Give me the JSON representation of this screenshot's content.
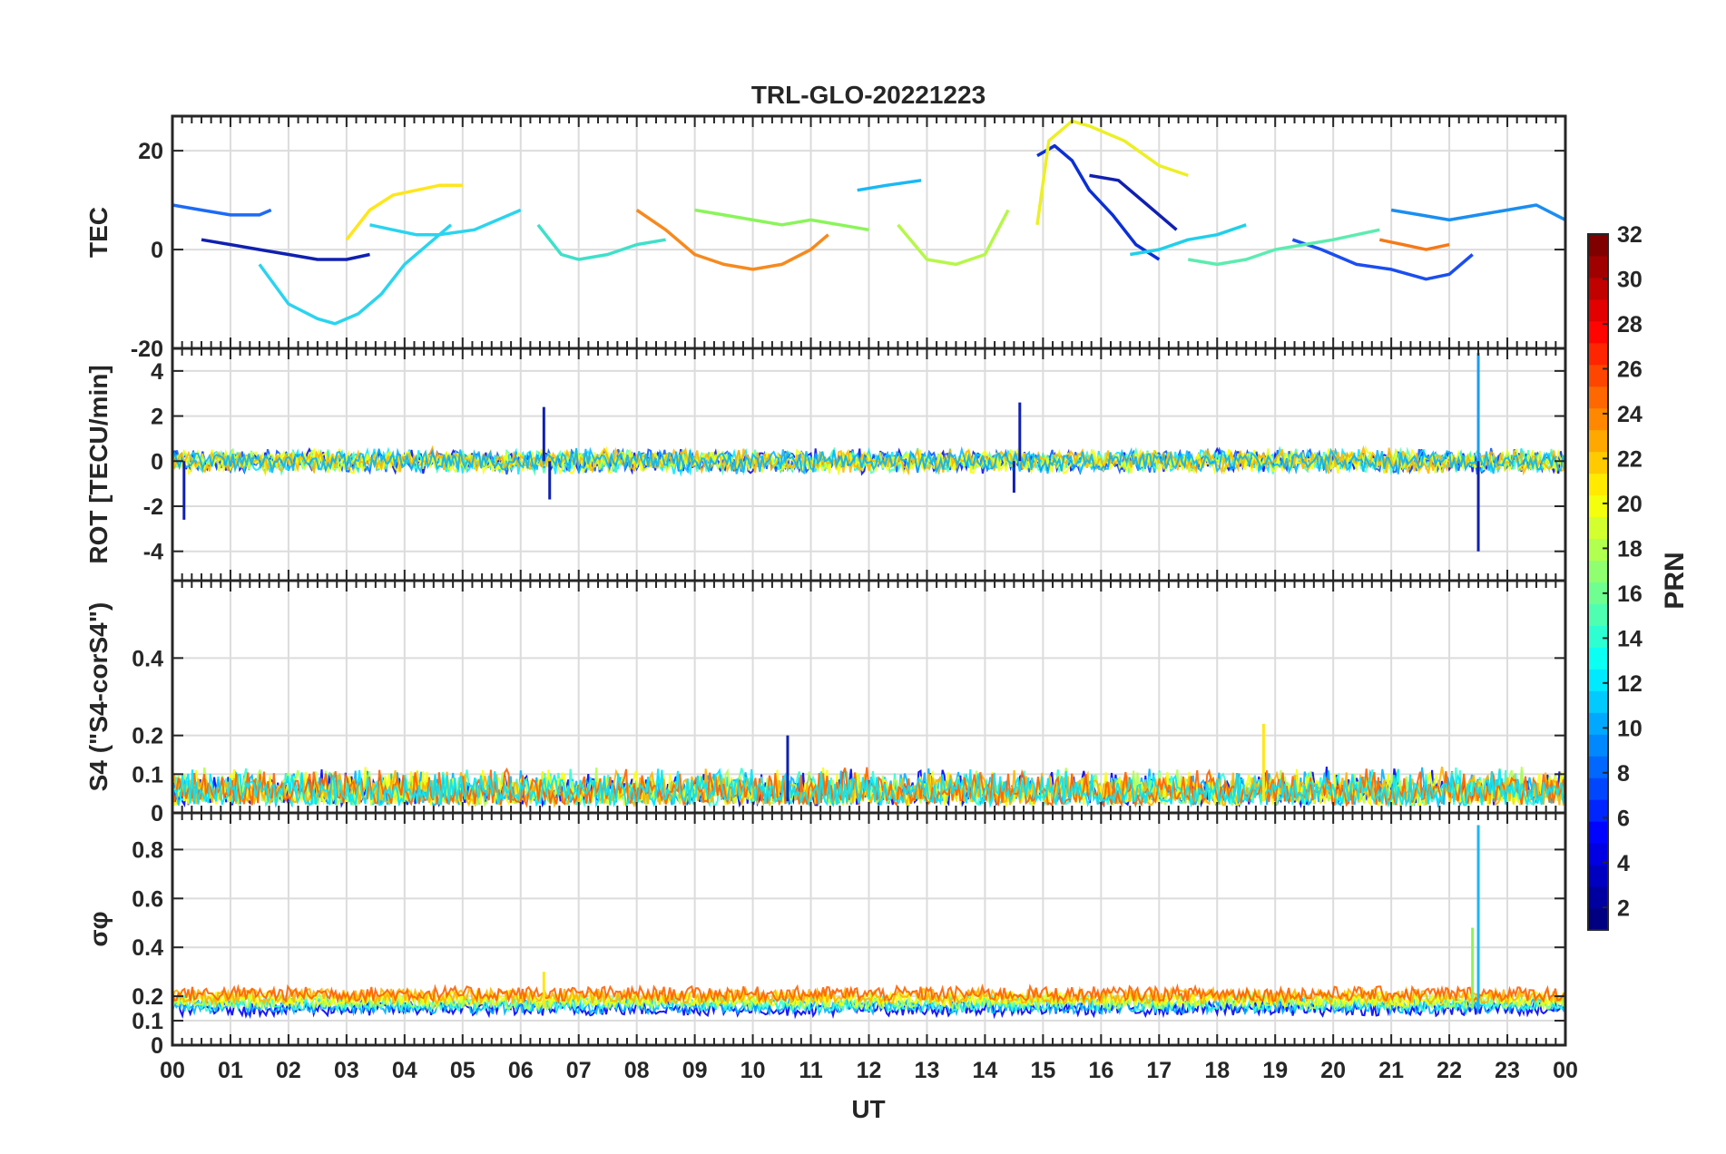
{
  "chart_data": {
    "type": "line",
    "title": "TRL-GLO-20221223",
    "xlabel": "UT",
    "x_ticks": [
      "00",
      "01",
      "02",
      "03",
      "04",
      "05",
      "06",
      "07",
      "08",
      "09",
      "10",
      "11",
      "12",
      "13",
      "14",
      "15",
      "16",
      "17",
      "18",
      "19",
      "20",
      "21",
      "22",
      "23",
      "00"
    ],
    "xlim": [
      0,
      24
    ],
    "panels": [
      {
        "id": "tec",
        "ylabel": "TEC",
        "ylim": [
          -20,
          27
        ],
        "yticks": [
          20,
          0,
          -20
        ],
        "tick_labels": [
          "20",
          "0",
          "-20"
        ],
        "series": [
          {
            "prn": 4,
            "color": "#0b2fd6",
            "x": [
              14.9,
              15.2,
              15.5,
              15.8,
              16.2,
              16.6,
              17.0
            ],
            "values": [
              19,
              21,
              18,
              12,
              7,
              1,
              -2
            ]
          },
          {
            "prn": 5,
            "color": "#1b4ef0",
            "x": [
              19.3,
              19.8,
              20.4,
              21.0,
              21.6,
              22.0,
              22.4
            ],
            "values": [
              2,
              0,
              -3,
              -4,
              -6,
              -5,
              -1
            ]
          },
          {
            "prn": 11,
            "color": "#2ad4ef",
            "x": [
              1.5,
              2.0,
              2.5,
              2.8,
              3.2,
              3.6,
              4.0,
              4.4,
              4.8
            ],
            "values": [
              -3,
              -11,
              -14,
              -15,
              -13,
              -9,
              -3,
              1,
              5
            ]
          },
          {
            "prn": 11,
            "color": "#2ad4ef",
            "x": [
              3.4,
              3.8,
              4.2,
              4.6,
              5.2,
              6.0
            ],
            "values": [
              5,
              4,
              3,
              3,
              4,
              8
            ]
          },
          {
            "prn": 19,
            "color": "#ecf024",
            "x": [
              14.9,
              15.1,
              15.5,
              15.8,
              16.4,
              17.0,
              17.5
            ],
            "values": [
              5,
              22,
              26,
              25,
              22,
              17,
              15
            ]
          },
          {
            "prn": 23,
            "color": "#f68a1e",
            "x": [
              8.0,
              8.5,
              9.0,
              9.5,
              10.0,
              10.5,
              11.0,
              11.3
            ],
            "values": [
              8,
              4,
              -1,
              -3,
              -4,
              -3,
              0,
              3
            ]
          },
          {
            "prn": 2,
            "color": "#1020b0",
            "x": [
              0.5,
              1.0,
              1.5,
              2.0,
              2.5,
              3.0,
              3.4
            ],
            "values": [
              2,
              1,
              0,
              -1,
              -2,
              -2,
              -1
            ]
          },
          {
            "prn": 9,
            "color": "#1b8ef0",
            "x": [
              21.0,
              21.5,
              22.0,
              22.5,
              23.0,
              23.5,
              24.0
            ],
            "values": [
              8,
              7,
              6,
              7,
              8,
              9,
              6
            ]
          },
          {
            "prn": 16,
            "color": "#8af55a",
            "x": [
              9.0,
              9.5,
              10.0,
              10.5,
              11.0,
              11.5,
              12.0
            ],
            "values": [
              8,
              7,
              6,
              5,
              6,
              5,
              4
            ]
          },
          {
            "prn": 20,
            "color": "#ffe61a",
            "x": [
              3.0,
              3.4,
              3.8,
              4.2,
              4.6,
              5.0
            ],
            "values": [
              2,
              8,
              11,
              12,
              13,
              13
            ]
          },
          {
            "prn": 14,
            "color": "#3fe0c9",
            "x": [
              6.3,
              6.7,
              7.0,
              7.5,
              8.0,
              8.5
            ],
            "values": [
              5,
              -1,
              -2,
              -1,
              1,
              2
            ]
          },
          {
            "prn": 7,
            "color": "#1d6bf5",
            "x": [
              0.0,
              0.5,
              1.0,
              1.5,
              1.7
            ],
            "values": [
              9,
              8,
              7,
              7,
              8
            ]
          },
          {
            "prn": 17,
            "color": "#b6f74a",
            "x": [
              12.5,
              13.0,
              13.5,
              14.0,
              14.4
            ],
            "values": [
              5,
              -2,
              -3,
              -1,
              8
            ]
          },
          {
            "prn": 2,
            "color": "#1020b0",
            "x": [
              15.8,
              16.3,
              16.8,
              17.3
            ],
            "values": [
              15,
              14,
              9,
              4
            ]
          },
          {
            "prn": 12,
            "color": "#1ab8f5",
            "x": [
              11.8,
              12.3,
              12.9
            ],
            "values": [
              12,
              13,
              14
            ]
          },
          {
            "prn": 13,
            "color": "#1fd0ea",
            "x": [
              16.5,
              17.0,
              17.5,
              18.0,
              18.5
            ],
            "values": [
              -1,
              0,
              2,
              3,
              5
            ]
          },
          {
            "prn": 15,
            "color": "#5cecb0",
            "x": [
              17.5,
              18.0,
              18.5,
              19.0,
              19.5,
              20.0,
              20.8
            ],
            "values": [
              -2,
              -3,
              -2,
              0,
              1,
              2,
              4
            ]
          },
          {
            "prn": 24,
            "color": "#f57a18",
            "x": [
              20.8,
              21.2,
              21.6,
              22.0
            ],
            "values": [
              2,
              1,
              0,
              1
            ]
          }
        ]
      },
      {
        "id": "rot",
        "ylabel": "ROT [TECU/min]",
        "ylim": [
          -5.3,
          5.0
        ],
        "yticks": [
          4,
          2,
          0,
          -2,
          -4
        ],
        "tick_labels": [
          "4",
          "2",
          "0",
          "-2",
          "-4"
        ],
        "bursts": [
          {
            "x": 0.2,
            "value": -2.6
          },
          {
            "x": 6.4,
            "value": 2.4
          },
          {
            "x": 6.5,
            "value": -1.7
          },
          {
            "x": 14.6,
            "value": 2.6
          },
          {
            "x": 14.5,
            "value": -1.4
          },
          {
            "x": 22.5,
            "value": 4.8
          },
          {
            "x": 22.5,
            "value": -4.0
          }
        ]
      },
      {
        "id": "s4",
        "ylabel": "S4 (\"S4-corS4\")",
        "ylim": [
          0,
          0.6
        ],
        "yticks": [
          0.4,
          0.2,
          0.1,
          0
        ],
        "tick_labels": [
          "0.4",
          "0.2",
          "0.1",
          "0"
        ],
        "peaks": [
          {
            "x": 10.6,
            "value": 0.2
          },
          {
            "x": 18.8,
            "value": 0.23
          }
        ]
      },
      {
        "id": "sigma",
        "ylabel": "σφ",
        "ylim": [
          0,
          0.95
        ],
        "yticks": [
          0.8,
          0.6,
          0.4,
          0.2,
          0.1,
          0
        ],
        "tick_labels": [
          "0.8",
          "0.6",
          "0.4",
          "0.2",
          "0.1",
          "0"
        ],
        "peaks": [
          {
            "x": 22.5,
            "value": 0.9
          },
          {
            "x": 22.4,
            "value": 0.48
          },
          {
            "x": 6.4,
            "value": 0.3
          }
        ]
      }
    ],
    "colorbar": {
      "label": "PRN",
      "range": [
        1,
        32
      ],
      "ticks": [
        2,
        4,
        6,
        8,
        10,
        12,
        14,
        16,
        18,
        20,
        22,
        24,
        26,
        28,
        30,
        32
      ],
      "tick_labels": [
        "2",
        "4",
        "6",
        "8",
        "10",
        "12",
        "14",
        "16",
        "18",
        "20",
        "22",
        "24",
        "26",
        "28",
        "30",
        "32"
      ]
    }
  }
}
